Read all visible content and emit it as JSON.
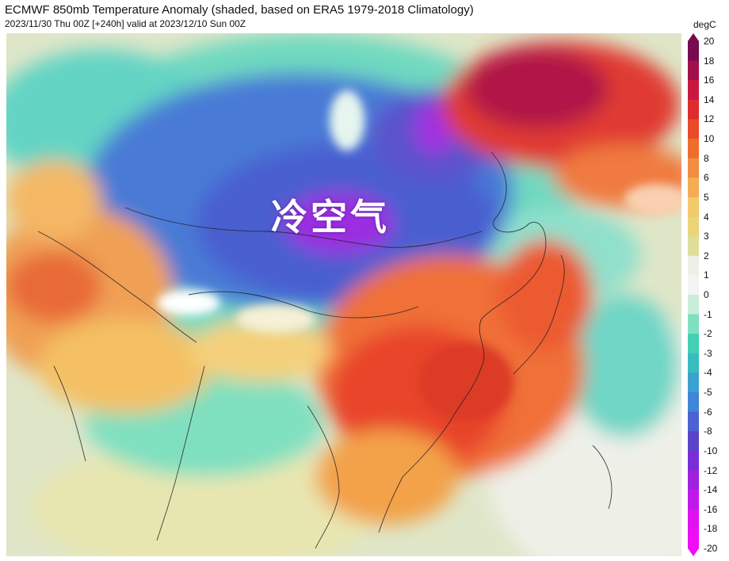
{
  "header": {
    "title": "ECMWF 850mb Temperature Anomaly (shaded, based on ERA5 1979-2018 Climatology)",
    "subtitle": "2023/11/30 Thu 00Z [+240h] valid at 2023/12/10 Sun 00Z"
  },
  "map": {
    "overlay_label": "冷空气"
  },
  "colorbar": {
    "unit": "degC",
    "ticks": [
      "20",
      "18",
      "16",
      "14",
      "12",
      "10",
      "8",
      "6",
      "5",
      "4",
      "3",
      "2",
      "1",
      "0",
      "-1",
      "-2",
      "-3",
      "-4",
      "-5",
      "-6",
      "-8",
      "-10",
      "-12",
      "-14",
      "-16",
      "-18",
      "-20"
    ],
    "colors": [
      "#7a0a4e",
      "#a20f4a",
      "#c8183f",
      "#de2b2e",
      "#ea4a28",
      "#f06c2c",
      "#f38d42",
      "#f4ac55",
      "#f3c96a",
      "#ead57a",
      "#ddde98",
      "#eef0e8",
      "#f4f4f4",
      "#c8eed8",
      "#7fe0c0",
      "#43d0b4",
      "#38bcc0",
      "#3aa2d0",
      "#3f86d8",
      "#4a62d2",
      "#5a44c8",
      "#7a2ed8",
      "#a020e0",
      "#c018ec",
      "#e012f2",
      "#f00cf6"
    ]
  }
}
